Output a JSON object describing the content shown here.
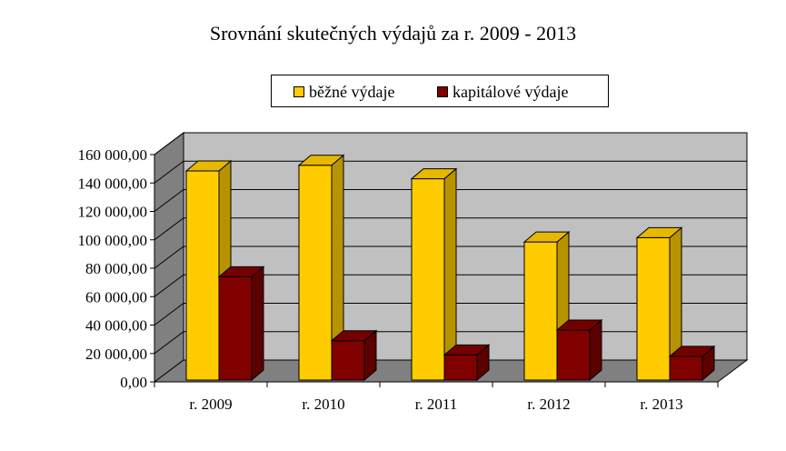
{
  "chart_data": {
    "type": "bar",
    "title": "Srovnání skutečných výdajů za r. 2009 - 2013",
    "categories": [
      "r. 2009",
      "r. 2010",
      "r. 2011",
      "r. 2012",
      "r. 2013"
    ],
    "series": [
      {
        "name": "běžné výdaje",
        "values": [
          148500,
          152500,
          143000,
          98500,
          101500
        ],
        "color": "#FFCC00"
      },
      {
        "name": "kapitálové výdaje",
        "values": [
          74000,
          29000,
          19000,
          36500,
          18000
        ],
        "color": "#800000"
      }
    ],
    "yticks": [
      "0,00",
      "20 000,00",
      "40 000,00",
      "60 000,00",
      "80 000,00",
      "100 000,00",
      "120 000,00",
      "140 000,00",
      "160 000,00"
    ],
    "ylim": [
      0,
      160000
    ],
    "grid": true,
    "legend_position": "top"
  },
  "colors": {
    "back_wall": "#C0C0C0",
    "floor": "#808080",
    "side_wall": "#808080"
  }
}
